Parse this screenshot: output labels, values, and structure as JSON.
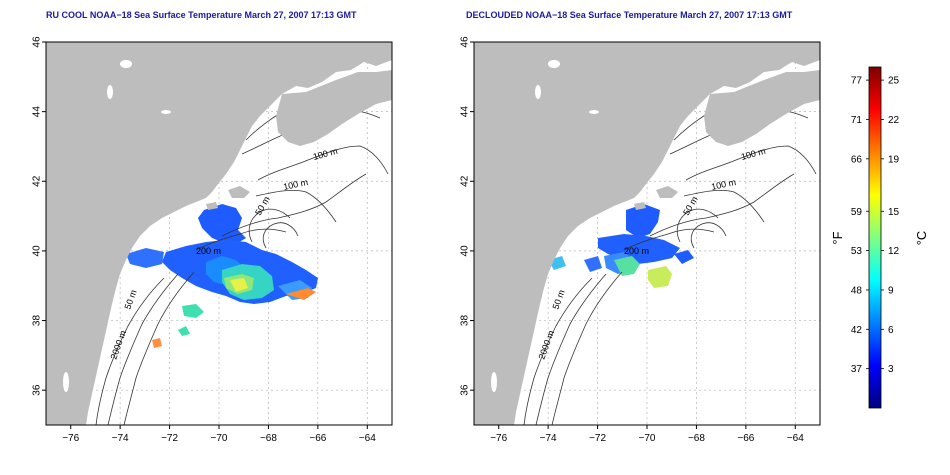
{
  "panels": [
    {
      "title": "RU COOL NOAA−18 Sea Surface Temperature March 27, 2007 17:13 GMT",
      "contour_labels": [
        "100 m",
        "100 m",
        "50 m",
        "200 m",
        "50 m",
        "2000 m"
      ]
    },
    {
      "title": "DECLOUDED NOAA−18 Sea Surface Temperature March 27, 2007 17:13 GMT",
      "contour_labels": [
        "100 m",
        "100 m",
        "50 m",
        "200 m",
        "50 m",
        "2000 m"
      ]
    }
  ],
  "axes": {
    "x_ticks": [
      "−76",
      "−74",
      "−72",
      "−70",
      "−68",
      "−66",
      "−64"
    ],
    "y_ticks": [
      "36",
      "38",
      "40",
      "42",
      "44",
      "46"
    ]
  },
  "colorbar": {
    "fahrenheit_label": "°F",
    "celsius_label": "°C",
    "fahrenheit_ticks": [
      "77",
      "71",
      "66",
      "59",
      "53",
      "48",
      "42",
      "37"
    ],
    "celsius_ticks": [
      "25",
      "22",
      "19",
      "15",
      "12",
      "9",
      "6",
      "3"
    ],
    "celsius_values": [
      25,
      22,
      19,
      15,
      12,
      9,
      6,
      3
    ],
    "range_celsius": [
      0,
      26
    ],
    "gradient": [
      "#00007f",
      "#0000ff",
      "#0080ff",
      "#00ffff",
      "#80ff80",
      "#ffff00",
      "#ff8000",
      "#ff0000",
      "#7f0000"
    ]
  },
  "colors": {
    "land": "#bdbdbd",
    "ocean": "#ffffff",
    "contour": "#333333",
    "grid": "#b5b5b5",
    "title": "#1a1aa0"
  }
}
